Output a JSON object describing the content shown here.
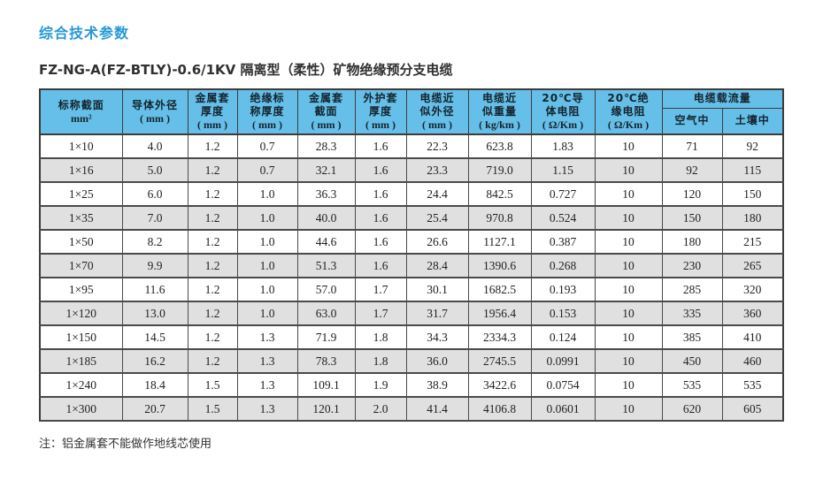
{
  "page": {
    "title": "综合技术参数",
    "subtitle": "FZ-NG-A(FZ-BTLY)-0.6/1KV 隔离型（柔性）矿物绝缘预分支电缆",
    "note": "注：铝金属套不能做作地线芯使用"
  },
  "colors": {
    "title_blue": "#2499d6",
    "header_bg": "#66bfe8",
    "row_alt_gray": "#e0e0e0",
    "border_dark": "#3c3c3c"
  },
  "table": {
    "columns": [
      {
        "lines": [
          "标称截面"
        ],
        "unit": "mm²"
      },
      {
        "lines": [
          "导体外径"
        ],
        "unit": "( mm )"
      },
      {
        "lines": [
          "金属套",
          "厚度"
        ],
        "unit": "( mm )"
      },
      {
        "lines": [
          "绝缘标",
          "称厚度"
        ],
        "unit": "( mm )"
      },
      {
        "lines": [
          "金属套",
          "截面"
        ],
        "unit": "( mm )"
      },
      {
        "lines": [
          "外护套",
          "厚度"
        ],
        "unit": "( mm )"
      },
      {
        "lines": [
          "电缆近",
          "似外径"
        ],
        "unit": "( mm )"
      },
      {
        "lines": [
          "电缆近",
          "似重量"
        ],
        "unit": "( kg/km )"
      },
      {
        "lines": [
          "20℃导",
          "体电阻"
        ],
        "unit": "( Ω/Km )"
      },
      {
        "lines": [
          "20℃绝",
          "缘电阻"
        ],
        "unit": "( Ω/Km )"
      }
    ],
    "ampacity_group": {
      "label": "电缆载流量",
      "sub_columns": [
        "空气中",
        "土壤中"
      ]
    },
    "rows": [
      [
        "1×10",
        "4.0",
        "1.2",
        "0.7",
        "28.3",
        "1.6",
        "22.3",
        "623.8",
        "1.83",
        "10",
        "71",
        "92"
      ],
      [
        "1×16",
        "5.0",
        "1.2",
        "0.7",
        "32.1",
        "1.6",
        "23.3",
        "719.0",
        "1.15",
        "10",
        "92",
        "115"
      ],
      [
        "1×25",
        "6.0",
        "1.2",
        "1.0",
        "36.3",
        "1.6",
        "24.4",
        "842.5",
        "0.727",
        "10",
        "120",
        "150"
      ],
      [
        "1×35",
        "7.0",
        "1.2",
        "1.0",
        "40.0",
        "1.6",
        "25.4",
        "970.8",
        "0.524",
        "10",
        "150",
        "180"
      ],
      [
        "1×50",
        "8.2",
        "1.2",
        "1.0",
        "44.6",
        "1.6",
        "26.6",
        "1127.1",
        "0.387",
        "10",
        "180",
        "215"
      ],
      [
        "1×70",
        "9.9",
        "1.2",
        "1.0",
        "51.3",
        "1.6",
        "28.4",
        "1390.6",
        "0.268",
        "10",
        "230",
        "265"
      ],
      [
        "1×95",
        "11.6",
        "1.2",
        "1.0",
        "57.0",
        "1.7",
        "30.1",
        "1682.5",
        "0.193",
        "10",
        "285",
        "320"
      ],
      [
        "1×120",
        "13.0",
        "1.2",
        "1.0",
        "63.0",
        "1.7",
        "31.7",
        "1956.4",
        "0.153",
        "10",
        "335",
        "360"
      ],
      [
        "1×150",
        "14.5",
        "1.2",
        "1.3",
        "71.9",
        "1.8",
        "34.3",
        "2334.3",
        "0.124",
        "10",
        "385",
        "410"
      ],
      [
        "1×185",
        "16.2",
        "1.2",
        "1.3",
        "78.3",
        "1.8",
        "36.0",
        "2745.5",
        "0.0991",
        "10",
        "450",
        "460"
      ],
      [
        "1×240",
        "18.4",
        "1.5",
        "1.3",
        "109.1",
        "1.9",
        "38.9",
        "3422.6",
        "0.0754",
        "10",
        "535",
        "535"
      ],
      [
        "1×300",
        "20.7",
        "1.5",
        "1.3",
        "120.1",
        "2.0",
        "41.4",
        "4106.8",
        "0.0601",
        "10",
        "620",
        "605"
      ]
    ]
  }
}
